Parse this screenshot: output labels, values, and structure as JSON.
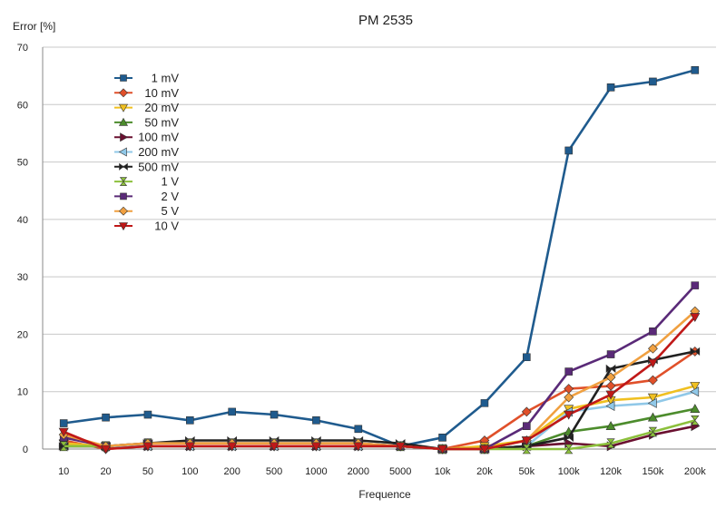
{
  "chart_data": {
    "type": "line",
    "title": "PM 2535",
    "xlabel": "Frequence",
    "ylabel": "Error [%]",
    "ylim": [
      0,
      70
    ],
    "yticks": [
      0,
      10,
      20,
      30,
      40,
      50,
      60,
      70
    ],
    "grid": "horizontal",
    "legend_position": "top-left",
    "categories": [
      "10",
      "20",
      "50",
      "100",
      "200",
      "500",
      "1000",
      "2000",
      "5000",
      "10k",
      "20k",
      "50k",
      "100k",
      "120k",
      "150k",
      "200k"
    ],
    "series": [
      {
        "name": "1 mV",
        "color": "#1f5b8e",
        "marker": "square",
        "values": [
          4.5,
          5.5,
          6,
          5,
          6.5,
          6,
          5,
          3.5,
          0.5,
          2,
          8,
          16,
          52,
          63,
          64,
          66
        ]
      },
      {
        "name": "10 mV",
        "color": "#e0502a",
        "marker": "diamond",
        "values": [
          1.5,
          0,
          0.5,
          0.5,
          0.5,
          0.5,
          0.5,
          0.5,
          0.5,
          0,
          1.5,
          6.5,
          10.5,
          11,
          12,
          17
        ]
      },
      {
        "name": "20 mV",
        "color": "#f0c020",
        "marker": "triangle-down",
        "values": [
          1,
          0.5,
          0.5,
          0.5,
          0.5,
          0.5,
          0.5,
          0.5,
          0.5,
          0,
          0.5,
          1.5,
          7,
          8.5,
          9,
          11
        ]
      },
      {
        "name": "50 mV",
        "color": "#4c8c2c",
        "marker": "triangle-up",
        "values": [
          0.5,
          0.5,
          0.5,
          0.5,
          0.5,
          0.5,
          0.5,
          0.5,
          0.5,
          0,
          0,
          0.5,
          3,
          4,
          5.5,
          7
        ]
      },
      {
        "name": "100 mV",
        "color": "#6a1030",
        "marker": "triangle-right",
        "values": [
          0.5,
          0.5,
          0.5,
          0.5,
          0.5,
          0.5,
          0.5,
          0.5,
          0.5,
          0,
          0,
          0.5,
          1,
          0.5,
          2.5,
          4
        ]
      },
      {
        "name": "200 mV",
        "color": "#90c8e8",
        "marker": "triangle-left",
        "values": [
          0.5,
          0.5,
          0.5,
          0.5,
          0.5,
          0.5,
          0.5,
          0.5,
          0.5,
          0,
          0,
          0.5,
          6.5,
          7.5,
          8,
          10
        ]
      },
      {
        "name": "500 mV",
        "color": "#202020",
        "marker": "bowtie",
        "values": [
          0.5,
          0.5,
          1,
          1.5,
          1.5,
          1.5,
          1.5,
          1.5,
          1,
          0,
          0,
          0.5,
          2,
          14,
          15.5,
          17
        ]
      },
      {
        "name": "1 V",
        "color": "#8cc03c",
        "marker": "hourglass",
        "values": [
          0.5,
          0.5,
          1,
          1,
          1,
          1,
          1,
          1,
          0.5,
          0,
          0,
          0,
          0,
          1,
          3,
          5
        ]
      },
      {
        "name": "2 V",
        "color": "#5a2a78",
        "marker": "square",
        "values": [
          2,
          0.5,
          1,
          1,
          1,
          1,
          1,
          1,
          0.5,
          0,
          0,
          4,
          13.5,
          16.5,
          20.5,
          28.5
        ]
      },
      {
        "name": "5 V",
        "color": "#f0a040",
        "marker": "diamond",
        "values": [
          2.5,
          0.5,
          1,
          1,
          1,
          1,
          1,
          1,
          0.5,
          0,
          0,
          1.5,
          9,
          12.5,
          17.5,
          24
        ]
      },
      {
        "name": "10 V",
        "color": "#c01818",
        "marker": "triangle-down",
        "values": [
          3,
          0,
          0.5,
          0.5,
          0.5,
          0.5,
          0.5,
          0.5,
          0.5,
          0,
          0,
          1.5,
          6,
          9.5,
          15,
          23
        ]
      }
    ]
  }
}
